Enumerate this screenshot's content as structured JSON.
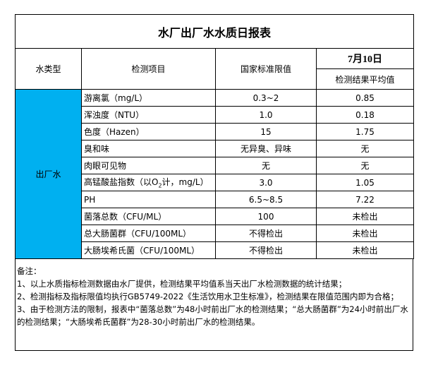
{
  "title": "水厂出厂水水质日报表",
  "headers": {
    "type": "水类型",
    "item": "检测项目",
    "standard": "国家标准限值",
    "date": "7月10日",
    "result": "检测结果平均值"
  },
  "water_type": "出厂水",
  "type_cell_color": "#00b0f0",
  "rows": [
    {
      "item": "游离氯（mg/L）",
      "standard": "0.3~2",
      "result": "0.85"
    },
    {
      "item": "浑浊度（NTU）",
      "standard": "1.0",
      "result": "0.18"
    },
    {
      "item": "色度（Hazen）",
      "standard": "15",
      "result": "1.75"
    },
    {
      "item": "臭和味",
      "standard": "无异臭、异味",
      "result": "无"
    },
    {
      "item": "肉眼可见物",
      "standard": "无",
      "result": "无"
    },
    {
      "item_pre": "高锰酸盐指数（以O",
      "item_sub": "2",
      "item_post": "计，mg/L）",
      "standard": "3.0",
      "result": "1.05"
    },
    {
      "item": "PH",
      "standard": "6.5~8.5",
      "result": "7.22"
    },
    {
      "item": "菌落总数（CFU/ML）",
      "standard": "100",
      "result": "未检出"
    },
    {
      "item": "总大肠菌群（CFU/100ML）",
      "standard": "不得检出",
      "result": "未检出"
    },
    {
      "item": "大肠埃希氏菌（CFU/100ML）",
      "standard": "不得检出",
      "result": "未检出"
    }
  ],
  "notes": [
    "备注：",
    "1、以上水质指标检测数据由水厂提供，检测结果平均值系当天出厂水检测数据的统计结果；",
    "2、检测指标及指标限值均执行GB5749-2022《生活饮用水卫生标准》，检测结果在限值范围内即为合格；",
    "3、由于检测方法的限制，报表中“菌落总数”为48小时前出厂水的检测结果；“总大肠菌群”为24小时前出厂水的检测结果；“大肠埃希氏菌群”为28-30小时前出厂水的检测结果。"
  ]
}
